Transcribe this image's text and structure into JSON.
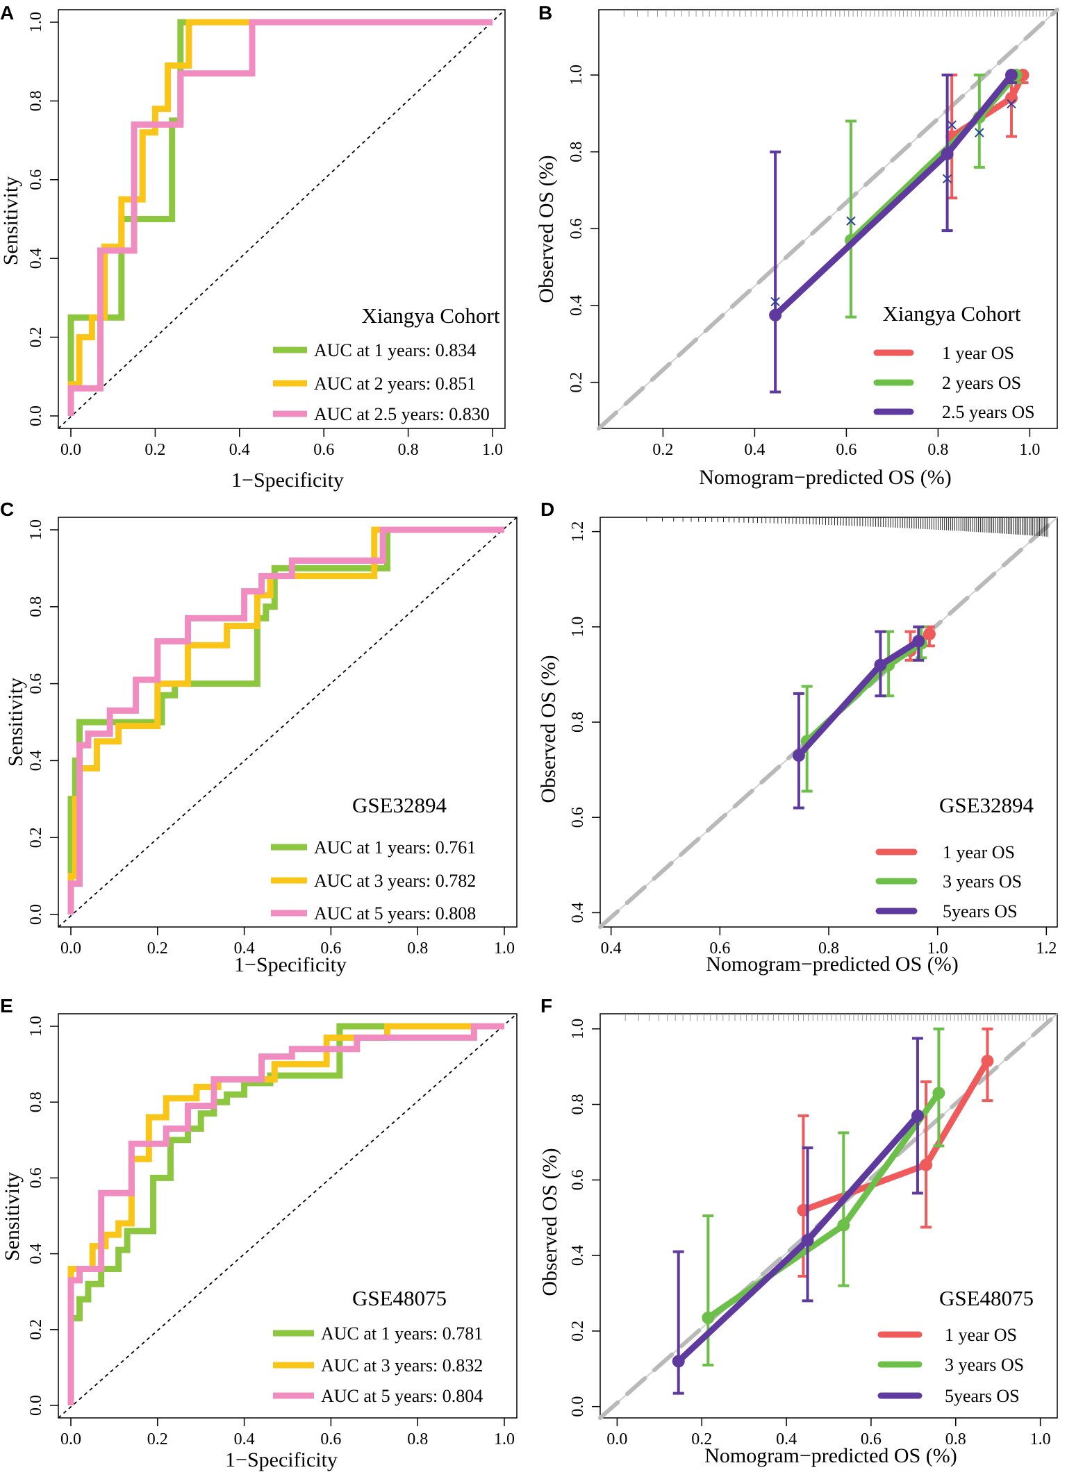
{
  "chart_data": [
    {
      "panel": "A",
      "type": "line",
      "subtype": "roc",
      "title": "Xiangya Cohort",
      "xlabel": "1−Specificity",
      "ylabel": "Sensitivity",
      "xlim": [
        0,
        1
      ],
      "ylim": [
        0,
        1
      ],
      "xticks": [
        "0.0",
        "0.2",
        "0.4",
        "0.6",
        "0.8",
        "1.0"
      ],
      "yticks": [
        "0.0",
        "0.2",
        "0.4",
        "0.6",
        "0.8",
        "1.0"
      ],
      "reference_line": "diagonal",
      "legend_position": "bottom-right",
      "series": [
        {
          "name": "AUC at 1 years: 0.834",
          "color": "#8DC63F",
          "x": [
            0,
            0,
            0.12,
            0.12,
            0.15,
            0.15,
            0.24,
            0.24,
            0.26,
            0.26,
            1.0
          ],
          "y": [
            0,
            0.25,
            0.25,
            0.5,
            0.5,
            0.5,
            0.5,
            0.75,
            0.75,
            1.0,
            1.0
          ]
        },
        {
          "name": "AUC at 2 years: 0.851",
          "color": "#F9C518",
          "x": [
            0,
            0,
            0.02,
            0.02,
            0.05,
            0.05,
            0.08,
            0.08,
            0.12,
            0.12,
            0.17,
            0.17,
            0.2,
            0.2,
            0.23,
            0.23,
            0.28,
            0.28,
            0.43,
            0.43,
            1.0
          ],
          "y": [
            0,
            0.08,
            0.08,
            0.2,
            0.2,
            0.25,
            0.25,
            0.43,
            0.43,
            0.55,
            0.55,
            0.72,
            0.72,
            0.78,
            0.78,
            0.89,
            0.89,
            1.0,
            1.0,
            1.0,
            1.0
          ],
          "note": "staircase approximated"
        },
        {
          "name": "AUC at 2.5 years: 0.830",
          "color": "#F08CBF",
          "x": [
            0,
            0,
            0.07,
            0.07,
            0.15,
            0.15,
            0.26,
            0.26,
            0.43,
            0.43,
            1.0
          ],
          "y": [
            0,
            0.07,
            0.07,
            0.42,
            0.42,
            0.74,
            0.74,
            0.87,
            0.87,
            1.0,
            1.0
          ]
        }
      ]
    },
    {
      "panel": "B",
      "type": "line",
      "subtype": "calibration",
      "title": "Xiangya Cohort",
      "xlabel": "Nomogram−predicted OS (%)",
      "ylabel": "Observed OS (%)",
      "xlim": [
        0.06,
        1.06
      ],
      "ylim": [
        0.08,
        1.17
      ],
      "xticks": [
        "0.2",
        "0.4",
        "0.6",
        "0.8",
        "1.0"
      ],
      "yticks": [
        "0.2",
        "0.4",
        "0.6",
        "0.8",
        "1.0"
      ],
      "reference_line": "diagonal",
      "legend_position": "bottom-right",
      "series": [
        {
          "name": "1 year OS",
          "color": "#EF5A5A",
          "x": [
            0.83,
            0.96,
            0.985
          ],
          "y": [
            0.84,
            0.94,
            1.0
          ],
          "err_low": [
            0.68,
            0.84,
            0.98
          ],
          "err_high": [
            1.0,
            1.0,
            1.0
          ]
        },
        {
          "name": "2 years OS",
          "color": "#6CC04A",
          "x": [
            0.61,
            0.89,
            0.97
          ],
          "y": [
            0.57,
            0.89,
            1.0
          ],
          "err_low": [
            0.37,
            0.76,
            0.98
          ],
          "err_high": [
            0.88,
            1.0,
            1.0
          ]
        },
        {
          "name": "2.5 years OS",
          "color": "#5E3A9E",
          "x": [
            0.445,
            0.82,
            0.96
          ],
          "y": [
            0.375,
            0.795,
            1.0
          ],
          "err_low": [
            0.175,
            0.595,
            0.98
          ],
          "err_high": [
            0.8,
            1.0,
            1.0
          ]
        }
      ],
      "bias_corrected_marks": {
        "x": [
          0.445,
          0.61,
          0.82,
          0.83,
          0.89,
          0.96
        ],
        "y": [
          0.41,
          0.62,
          0.73,
          0.87,
          0.85,
          0.925
        ],
        "marker": "x"
      }
    },
    {
      "panel": "C",
      "type": "line",
      "subtype": "roc",
      "title": "GSE32894",
      "xlabel": "1−Specificity",
      "ylabel": "Sensitivity",
      "xlim": [
        0,
        1
      ],
      "ylim": [
        0,
        1
      ],
      "xticks": [
        "0.0",
        "0.2",
        "0.4",
        "0.6",
        "0.8",
        "1.0"
      ],
      "yticks": [
        "0.0",
        "0.2",
        "0.4",
        "0.6",
        "0.8",
        "1.0"
      ],
      "reference_line": "diagonal",
      "legend_position": "bottom-right",
      "series": [
        {
          "name": "AUC at 1 years: 0.761",
          "color": "#8DC63F",
          "x": [
            0,
            0,
            0.01,
            0.01,
            0.02,
            0.02,
            0.21,
            0.21,
            0.24,
            0.24,
            0.43,
            0.43,
            0.45,
            0.45,
            0.47,
            0.47,
            0.73,
            0.73,
            1.0
          ],
          "y": [
            0,
            0.3,
            0.3,
            0.4,
            0.4,
            0.5,
            0.5,
            0.57,
            0.57,
            0.6,
            0.6,
            0.77,
            0.77,
            0.8,
            0.8,
            0.9,
            0.9,
            1.0,
            1.0
          ]
        },
        {
          "name": "AUC at 3 years: 0.782",
          "color": "#F9C518",
          "x": [
            0,
            0,
            0.01,
            0.01,
            0.02,
            0.02,
            0.06,
            0.06,
            0.11,
            0.11,
            0.2,
            0.2,
            0.27,
            0.27,
            0.36,
            0.36,
            0.43,
            0.43,
            0.46,
            0.46,
            0.7,
            0.7,
            1.0
          ],
          "y": [
            0,
            0.1,
            0.1,
            0.3,
            0.3,
            0.38,
            0.38,
            0.45,
            0.45,
            0.49,
            0.49,
            0.6,
            0.6,
            0.7,
            0.7,
            0.75,
            0.75,
            0.83,
            0.83,
            0.88,
            0.88,
            1.0,
            1.0
          ]
        },
        {
          "name": "AUC at 5 years: 0.808",
          "color": "#F08CBF",
          "x": [
            0,
            0,
            0.02,
            0.02,
            0.04,
            0.04,
            0.09,
            0.09,
            0.15,
            0.15,
            0.2,
            0.2,
            0.27,
            0.27,
            0.4,
            0.4,
            0.44,
            0.44,
            0.51,
            0.51,
            0.72,
            0.72,
            1.0
          ],
          "y": [
            0,
            0.08,
            0.08,
            0.44,
            0.44,
            0.47,
            0.47,
            0.53,
            0.53,
            0.61,
            0.61,
            0.71,
            0.71,
            0.77,
            0.77,
            0.84,
            0.84,
            0.88,
            0.88,
            0.92,
            0.92,
            1.0,
            1.0
          ],
          "note": "staircase approximated"
        }
      ]
    },
    {
      "panel": "D",
      "type": "line",
      "subtype": "calibration",
      "title": "GSE32894",
      "xlabel": "Nomogram−predicted OS (%)",
      "ylabel": "Observed OS (%)",
      "xlim": [
        0.38,
        1.22
      ],
      "ylim": [
        0.37,
        1.23
      ],
      "xticks": [
        "0.4",
        "0.6",
        "0.8",
        "1.0",
        "1.2"
      ],
      "yticks": [
        "0.4",
        "0.6",
        "0.8",
        "1.0",
        "1.2"
      ],
      "reference_line": "diagonal",
      "legend_position": "bottom-right",
      "series": [
        {
          "name": "1 year OS",
          "color": "#EF5A5A",
          "x": [
            0.95,
            0.985
          ],
          "y": [
            0.95,
            0.985
          ],
          "err_low": [
            0.93,
            0.96
          ],
          "err_high": [
            0.99,
            1.0
          ]
        },
        {
          "name": "3 years OS",
          "color": "#6CC04A",
          "x": [
            0.76,
            0.91,
            0.97
          ],
          "y": [
            0.76,
            0.92,
            0.965
          ],
          "err_low": [
            0.655,
            0.855,
            0.935
          ],
          "err_high": [
            0.875,
            0.99,
            1.0
          ]
        },
        {
          "name": "5years OS",
          "color": "#5E3A9E",
          "x": [
            0.745,
            0.895,
            0.965
          ],
          "y": [
            0.73,
            0.92,
            0.97
          ],
          "err_low": [
            0.62,
            0.855,
            0.93
          ],
          "err_high": [
            0.86,
            0.99,
            1.0
          ]
        }
      ]
    },
    {
      "panel": "E",
      "type": "line",
      "subtype": "roc",
      "title": "GSE48075",
      "xlabel": "1−Specificity",
      "ylabel": "Sensitivity",
      "xlim": [
        0,
        1
      ],
      "ylim": [
        0,
        1
      ],
      "xticks": [
        "0.0",
        "0.2",
        "0.4",
        "0.6",
        "0.8",
        "1.0"
      ],
      "yticks": [
        "0.0",
        "0.2",
        "0.4",
        "0.6",
        "0.8",
        "1.0"
      ],
      "reference_line": "diagonal",
      "legend_position": "bottom-right",
      "series": [
        {
          "name": "AUC at 1 years: 0.781",
          "color": "#8DC63F",
          "x": [
            0,
            0,
            0.02,
            0.02,
            0.04,
            0.04,
            0.07,
            0.07,
            0.11,
            0.11,
            0.13,
            0.13,
            0.19,
            0.19,
            0.23,
            0.23,
            0.27,
            0.27,
            0.3,
            0.3,
            0.33,
            0.33,
            0.36,
            0.36,
            0.4,
            0.4,
            0.46,
            0.46,
            0.62,
            0.62,
            1.0
          ],
          "y": [
            0,
            0.23,
            0.23,
            0.28,
            0.28,
            0.32,
            0.32,
            0.36,
            0.36,
            0.41,
            0.41,
            0.46,
            0.46,
            0.6,
            0.6,
            0.7,
            0.7,
            0.73,
            0.73,
            0.77,
            0.77,
            0.8,
            0.8,
            0.82,
            0.82,
            0.85,
            0.85,
            0.87,
            0.87,
            1.0,
            1.0
          ]
        },
        {
          "name": "AUC at 3 years: 0.832",
          "color": "#F9C518",
          "x": [
            0,
            0,
            0.05,
            0.05,
            0.08,
            0.08,
            0.11,
            0.11,
            0.14,
            0.14,
            0.18,
            0.18,
            0.22,
            0.22,
            0.29,
            0.29,
            0.34,
            0.34,
            0.47,
            0.47,
            0.59,
            0.59,
            0.73,
            0.73,
            1.0
          ],
          "y": [
            0,
            0.36,
            0.36,
            0.42,
            0.42,
            0.45,
            0.45,
            0.48,
            0.48,
            0.65,
            0.65,
            0.76,
            0.76,
            0.81,
            0.81,
            0.84,
            0.84,
            0.86,
            0.86,
            0.9,
            0.9,
            0.97,
            0.97,
            1.0,
            1.0
          ]
        },
        {
          "name": "AUC at 5 years: 0.804",
          "color": "#F08CBF",
          "x": [
            0,
            0,
            0.02,
            0.02,
            0.07,
            0.07,
            0.14,
            0.14,
            0.22,
            0.22,
            0.27,
            0.27,
            0.33,
            0.33,
            0.44,
            0.44,
            0.51,
            0.51,
            0.66,
            0.66,
            0.93,
            0.93,
            1.0
          ],
          "y": [
            0,
            0.33,
            0.33,
            0.36,
            0.36,
            0.56,
            0.56,
            0.69,
            0.69,
            0.73,
            0.73,
            0.79,
            0.79,
            0.86,
            0.86,
            0.92,
            0.92,
            0.94,
            0.94,
            0.97,
            0.97,
            1.0,
            1.0
          ],
          "note": "staircase approximated"
        }
      ]
    },
    {
      "panel": "F",
      "type": "line",
      "subtype": "calibration",
      "title": "GSE48075",
      "xlabel": "Nomogram−predicted OS (%)",
      "ylabel": "Observed OS (%)",
      "xlim": [
        -0.04,
        1.04
      ],
      "ylim": [
        -0.03,
        1.04
      ],
      "xticks": [
        "0.0",
        "0.2",
        "0.4",
        "0.6",
        "0.8",
        "1.0"
      ],
      "yticks": [
        "0.0",
        "0.2",
        "0.4",
        "0.6",
        "0.8",
        "1.0"
      ],
      "reference_line": "diagonal",
      "legend_position": "bottom-right",
      "series": [
        {
          "name": "1 year OS",
          "color": "#EF5A5A",
          "x": [
            0.44,
            0.73,
            0.875
          ],
          "y": [
            0.52,
            0.64,
            0.915
          ],
          "err_low": [
            0.345,
            0.475,
            0.81
          ],
          "err_high": [
            0.77,
            0.86,
            1.0
          ]
        },
        {
          "name": "3 years OS",
          "color": "#6CC04A",
          "x": [
            0.215,
            0.535,
            0.76
          ],
          "y": [
            0.235,
            0.48,
            0.83
          ],
          "err_low": [
            0.11,
            0.32,
            0.69
          ],
          "err_high": [
            0.505,
            0.725,
            1.0
          ]
        },
        {
          "name": "5years OS",
          "color": "#5E3A9E",
          "x": [
            0.145,
            0.45,
            0.71
          ],
          "y": [
            0.12,
            0.44,
            0.77
          ],
          "err_low": [
            0.035,
            0.28,
            0.565
          ],
          "err_high": [
            0.41,
            0.685,
            0.975
          ]
        }
      ]
    }
  ]
}
